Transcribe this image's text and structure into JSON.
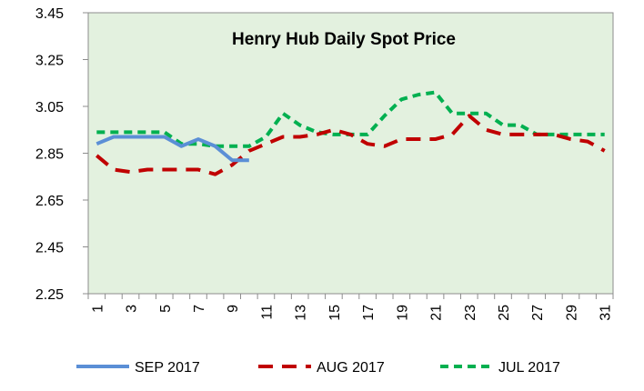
{
  "chart_data": {
    "type": "line",
    "title": "Henry Hub Daily Spot Price",
    "xlabel": "",
    "ylabel": "",
    "ylim": [
      2.25,
      3.45
    ],
    "yticks": [
      2.25,
      2.45,
      2.65,
      2.85,
      3.05,
      3.25,
      3.45
    ],
    "ytick_labels": [
      "2.25",
      "2.45",
      "2.65",
      "2.85",
      "3.05",
      "3.25",
      "3.45"
    ],
    "xlim": [
      1,
      31
    ],
    "xtick_labels": [
      "1",
      "3",
      "5",
      "7",
      "9",
      "11",
      "13",
      "15",
      "17",
      "19",
      "21",
      "23",
      "25",
      "27",
      "29",
      "31"
    ],
    "grid": false,
    "plot_background": "#e3f1df",
    "legend_position": "bottom",
    "series": [
      {
        "name": "SEP 2017",
        "color": "#5b8fd6",
        "style": "solid",
        "x": [
          1,
          2,
          3,
          4,
          5,
          6,
          7,
          8,
          9,
          10
        ],
        "values": [
          2.89,
          2.92,
          2.92,
          2.92,
          2.92,
          2.88,
          2.91,
          2.88,
          2.82,
          2.82
        ]
      },
      {
        "name": "AUG 2017",
        "color": "#c00000",
        "style": "dashed",
        "x": [
          1,
          2,
          3,
          4,
          5,
          6,
          7,
          8,
          9,
          10,
          11,
          12,
          13,
          14,
          15,
          16,
          17,
          18,
          19,
          20,
          21,
          22,
          23,
          24,
          25,
          26,
          27,
          28,
          29,
          30,
          31
        ],
        "values": [
          2.84,
          2.78,
          2.77,
          2.78,
          2.78,
          2.78,
          2.78,
          2.76,
          2.8,
          2.86,
          2.89,
          2.92,
          2.92,
          2.93,
          2.95,
          2.93,
          2.89,
          2.88,
          2.91,
          2.91,
          2.91,
          2.93,
          3.01,
          2.95,
          2.93,
          2.93,
          2.93,
          2.93,
          2.91,
          2.9,
          2.86
        ]
      },
      {
        "name": "JUL 2017",
        "color": "#00b050",
        "style": "dotted",
        "x": [
          1,
          2,
          3,
          4,
          5,
          6,
          7,
          8,
          9,
          10,
          11,
          12,
          13,
          14,
          15,
          16,
          17,
          18,
          19,
          20,
          21,
          22,
          23,
          24,
          25,
          26,
          27,
          28,
          29,
          30,
          31
        ],
        "values": [
          2.94,
          2.94,
          2.94,
          2.94,
          2.94,
          2.89,
          2.89,
          2.88,
          2.88,
          2.88,
          2.92,
          3.02,
          2.97,
          2.94,
          2.93,
          2.93,
          2.93,
          3.01,
          3.08,
          3.1,
          3.11,
          3.02,
          3.02,
          3.02,
          2.97,
          2.97,
          2.93,
          2.93,
          2.93,
          2.93,
          2.93
        ]
      }
    ]
  }
}
